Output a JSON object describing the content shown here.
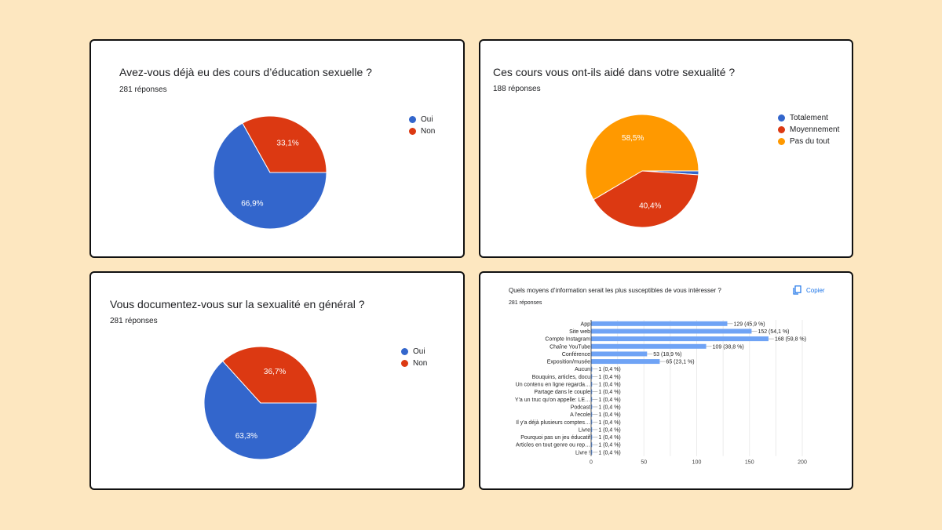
{
  "cards": [
    {
      "title": "Avez-vous déjà eu des cours d’éducation sexuelle ?",
      "responses": "281 réponses"
    },
    {
      "title": "Ces cours vous ont-ils aidé dans votre sexualité ?",
      "responses": "188 réponses"
    },
    {
      "title": "Vous documentez-vous sur la sexualité en général ?",
      "responses": "281 réponses"
    },
    {
      "title": "Quels moyens d’information serait les plus susceptibles de vous intéresser ?",
      "responses": "281 réponses",
      "copy_label": "Copier",
      "copy_icon": "copy-icon"
    }
  ],
  "chart_data": [
    {
      "type": "pie",
      "slices": [
        {
          "name": "Oui",
          "value": 66.9,
          "label": "66,9%",
          "color": "#3366cc"
        },
        {
          "name": "Non",
          "value": 33.1,
          "label": "33,1%",
          "color": "#dc3912"
        }
      ]
    },
    {
      "type": "pie",
      "slices": [
        {
          "name": "Totalement",
          "value": 1.1,
          "label": "",
          "color": "#3366cc"
        },
        {
          "name": "Moyennement",
          "value": 40.4,
          "label": "40,4%",
          "color": "#dc3912"
        },
        {
          "name": "Pas du tout",
          "value": 58.5,
          "label": "58,5%",
          "color": "#ff9900"
        }
      ]
    },
    {
      "type": "pie",
      "slices": [
        {
          "name": "Oui",
          "value": 63.3,
          "label": "63,3%",
          "color": "#3366cc"
        },
        {
          "name": "Non",
          "value": 36.7,
          "label": "36,7%",
          "color": "#dc3912"
        }
      ]
    },
    {
      "type": "bar",
      "orientation": "horizontal",
      "color": "#6fa3f5",
      "xlim": [
        0,
        200
      ],
      "xticks": [
        "0",
        "50",
        "100",
        "150",
        "200"
      ],
      "categories": [
        "App",
        "Site web",
        "Compte Instagram",
        "Chaîne YouTube",
        "Conférence",
        "Exposition/musée",
        "Aucun",
        "Bouquins, articles, docu",
        "Un contenu en ligne regarda…",
        "Partage dans le couple",
        "Y'a un truc qu'on appelle: LE…",
        "Podcast",
        "A l'ecole",
        "Il y'a déjà plusieurs comptes…",
        "Livre",
        "Pourquoi pas un jeu éducatif",
        "Articles en tout genre ou rep…",
        "Livre !"
      ],
      "values": [
        129,
        152,
        168,
        109,
        53,
        65,
        1,
        1,
        1,
        1,
        1,
        1,
        1,
        1,
        1,
        1,
        1,
        1
      ],
      "labels": [
        "129 (45,9 %)",
        "152 (54,1 %)",
        "168 (59,8 %)",
        "109 (38,8 %)",
        "53 (18,9 %)",
        "65 (23,1 %)",
        "1 (0,4 %)",
        "1 (0,4 %)",
        "1 (0,4 %)",
        "1 (0,4 %)",
        "1 (0,4 %)",
        "1 (0,4 %)",
        "1 (0,4 %)",
        "1 (0,4 %)",
        "1 (0,4 %)",
        "1 (0,4 %)",
        "1 (0,4 %)",
        "1 (0,4 %)"
      ]
    }
  ]
}
